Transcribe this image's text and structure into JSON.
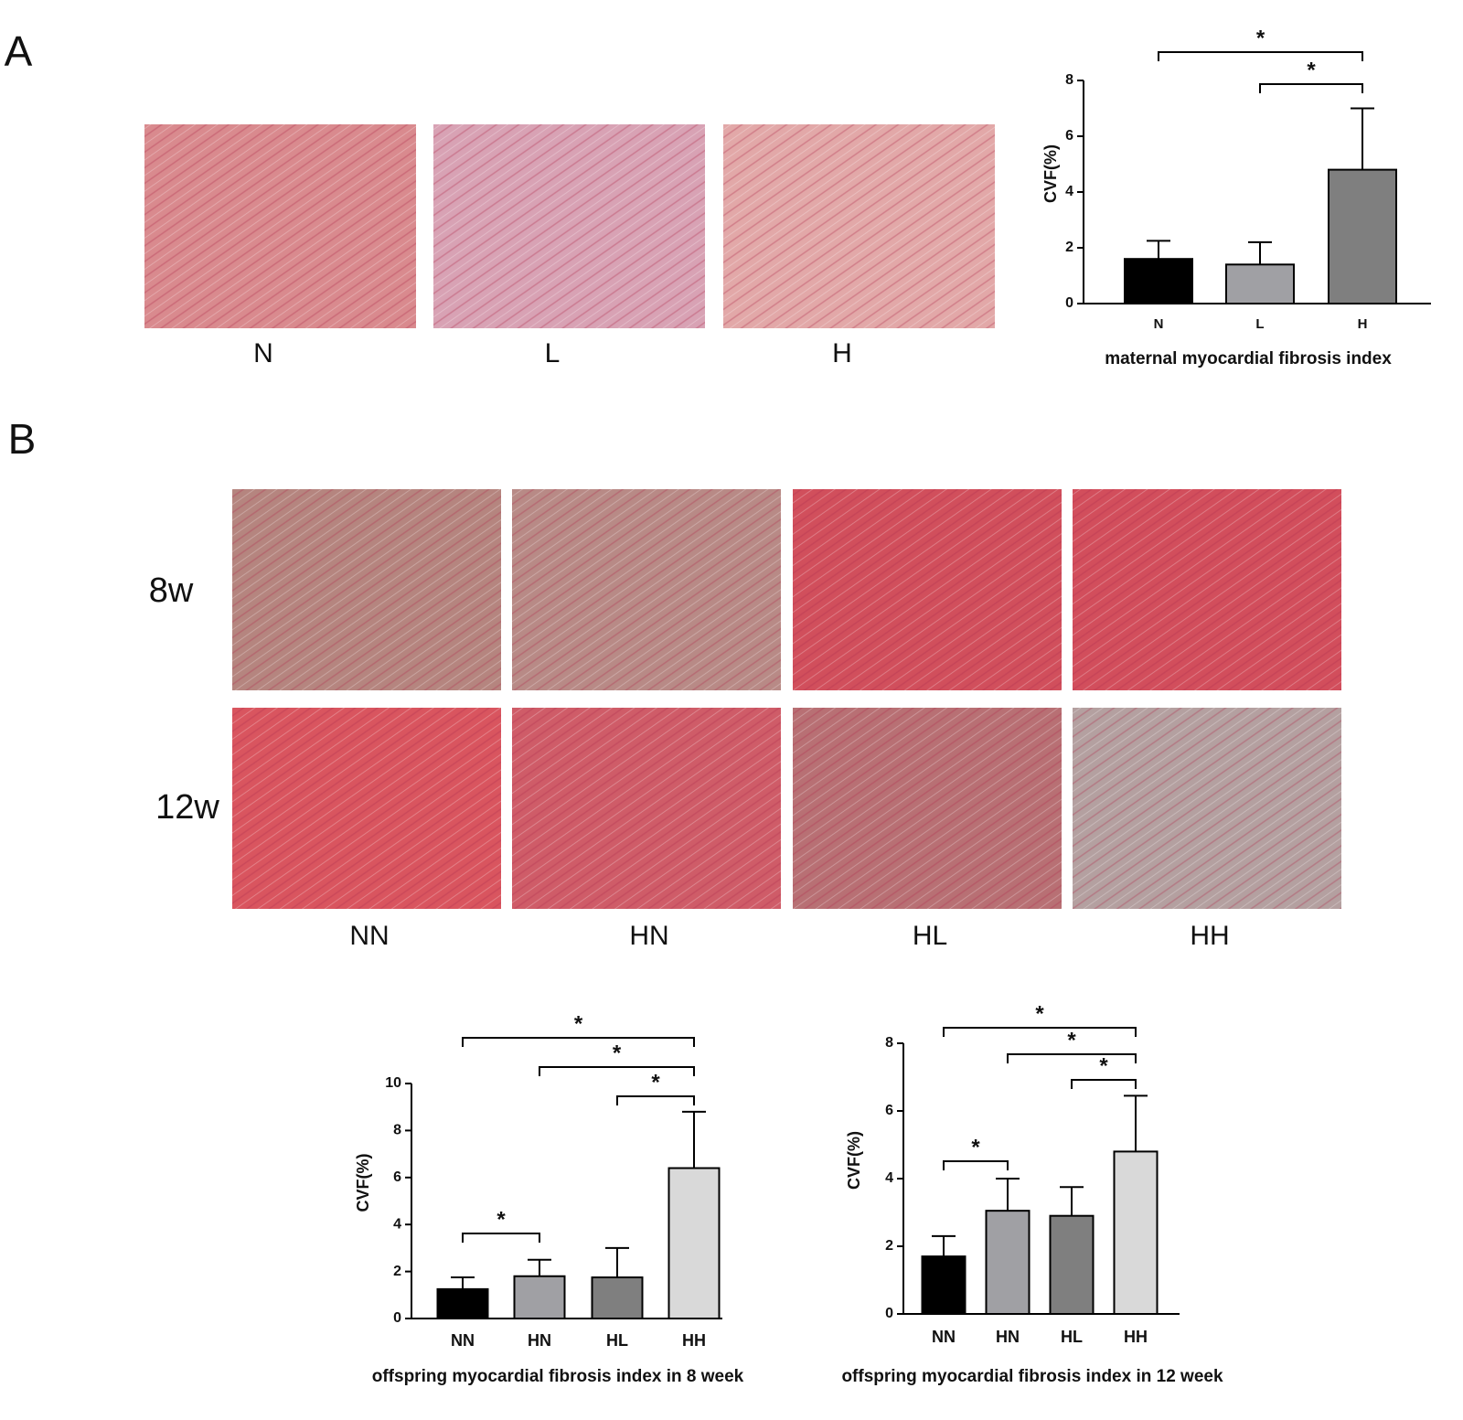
{
  "panel_labels": [
    "A",
    "B"
  ],
  "panel_a_images": [
    "N",
    "L",
    "H"
  ],
  "panel_b_rows": [
    "8w",
    "12w"
  ],
  "panel_b_images": [
    "NN",
    "HN",
    "HL",
    "HH"
  ],
  "chart_data": [
    {
      "type": "bar",
      "xlabel": "maternal myocardial fibrosis index",
      "ylabel": "CVF(%)",
      "categories": [
        "N",
        "L",
        "H"
      ],
      "values": [
        1.6,
        1.4,
        4.8
      ],
      "errors": [
        0.65,
        0.8,
        2.2
      ],
      "colors": [
        "#000000",
        "#a0a0a4",
        "#7f7f7f"
      ],
      "ylim": [
        0,
        8
      ],
      "yticks": [
        0,
        2,
        4,
        6,
        8
      ],
      "significance": [
        {
          "pair": [
            "N",
            "H"
          ],
          "label": "*"
        },
        {
          "pair": [
            "L",
            "H"
          ],
          "label": "*"
        }
      ]
    },
    {
      "type": "bar",
      "xlabel": "offspring myocardial fibrosis index in 8 week",
      "ylabel": "CVF(%)",
      "categories": [
        "NN",
        "HN",
        "HL",
        "HH"
      ],
      "values": [
        1.25,
        1.8,
        1.75,
        6.4
      ],
      "errors": [
        0.5,
        0.7,
        1.25,
        2.4
      ],
      "colors": [
        "#000000",
        "#a0a0a4",
        "#7f7f7f",
        "#d9d9d9"
      ],
      "ylim": [
        0,
        10
      ],
      "yticks": [
        0,
        2,
        4,
        6,
        8,
        10
      ],
      "significance": [
        {
          "pair": [
            "NN",
            "HH"
          ],
          "label": "*"
        },
        {
          "pair": [
            "HN",
            "HH"
          ],
          "label": "*"
        },
        {
          "pair": [
            "HL",
            "HH"
          ],
          "label": "*"
        },
        {
          "pair": [
            "NN",
            "HN"
          ],
          "label": "*"
        }
      ]
    },
    {
      "type": "bar",
      "xlabel": "offspring myocardial fibrosis index in 12 week",
      "ylabel": "CVF(%)",
      "categories": [
        "NN",
        "HN",
        "HL",
        "HH"
      ],
      "values": [
        1.7,
        3.05,
        2.9,
        4.8
      ],
      "errors": [
        0.6,
        0.95,
        0.85,
        1.65
      ],
      "colors": [
        "#000000",
        "#a0a0a4",
        "#7f7f7f",
        "#d9d9d9"
      ],
      "ylim": [
        0,
        8
      ],
      "yticks": [
        0,
        2,
        4,
        6,
        8
      ],
      "significance": [
        {
          "pair": [
            "NN",
            "HH"
          ],
          "label": "*"
        },
        {
          "pair": [
            "HN",
            "HH"
          ],
          "label": "*"
        },
        {
          "pair": [
            "HL",
            "HH"
          ],
          "label": "*"
        },
        {
          "pair": [
            "NN",
            "HN"
          ],
          "label": "*"
        }
      ]
    }
  ]
}
